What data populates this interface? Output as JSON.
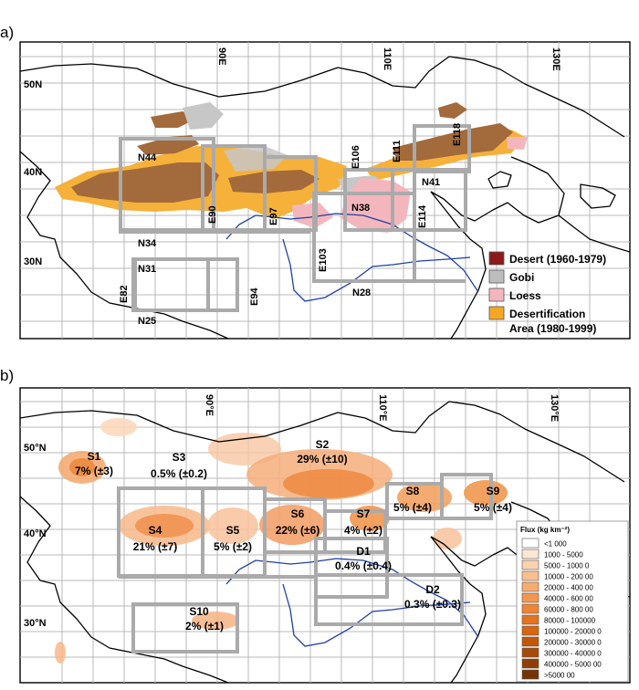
{
  "panel_a": {
    "label": "a)",
    "lat_labels": [
      "50N",
      "40N",
      "30N"
    ],
    "lon_labels": [
      "90E",
      "110E",
      "130E"
    ],
    "box_labels": {
      "N44": "N44",
      "N41": "N41",
      "N38": "N38",
      "N34": "N34",
      "N31": "N31",
      "N28": "N28",
      "N25": "N25",
      "E82": "E82",
      "E90": "E90",
      "E94": "E94",
      "E97": "E97",
      "E103": "E103",
      "E106": "E106",
      "E111": "E111",
      "E114": "E114",
      "E118": "E118"
    },
    "legend": [
      {
        "label": "Desert (1960-1979)",
        "color": "#8b1a1a"
      },
      {
        "label": "Gobi",
        "color": "#bdbdbd"
      },
      {
        "label": "Loess",
        "color": "#f4b6bd"
      },
      {
        "label": "Desertification",
        "label2": "Area (1980-1999)",
        "color": "#f5a623"
      }
    ]
  },
  "panel_b": {
    "label": "b)",
    "lat_labels": [
      "50°N",
      "40°N",
      "30°N"
    ],
    "lon_labels": [
      "90°E",
      "110°E",
      "130°E"
    ],
    "sources": [
      {
        "name": "S1",
        "pct": "7% (±3)"
      },
      {
        "name": "S2",
        "pct": "29% (±10)"
      },
      {
        "name": "S3",
        "pct": "0.5% (±0.2)"
      },
      {
        "name": "S4",
        "pct": "21% (±7)"
      },
      {
        "name": "S5",
        "pct": "5% (±2)"
      },
      {
        "name": "S6",
        "pct": "22% (±6)"
      },
      {
        "name": "S7",
        "pct": "4% (±2)"
      },
      {
        "name": "S8",
        "pct": "5% (±4)"
      },
      {
        "name": "S9",
        "pct": "5% (±4)"
      },
      {
        "name": "S10",
        "pct": "2% (±1)"
      },
      {
        "name": "D1",
        "pct": "0.4% (±0.4)"
      },
      {
        "name": "D2",
        "pct": "0.3% (±0.3)"
      }
    ],
    "flux_legend": {
      "title": "Flux (kg km⁻²)",
      "items": [
        {
          "label": "<1 000",
          "color": "#ffffff"
        },
        {
          "label": "1000 - 5000",
          "color": "#fde6d3"
        },
        {
          "label": "5000 - 1000 0",
          "color": "#fbd2b0"
        },
        {
          "label": "10000 - 200 00",
          "color": "#f9bf90"
        },
        {
          "label": "20000 - 400 00",
          "color": "#f7ab6e"
        },
        {
          "label": "40000 - 600 00",
          "color": "#f3974f"
        },
        {
          "label": "60000 - 800 00",
          "color": "#ee8434"
        },
        {
          "label": "80000 - 100000",
          "color": "#e5741f"
        },
        {
          "label": "100000 - 20000 0",
          "color": "#d8650f"
        },
        {
          "label": "200000 - 30000 0",
          "color": "#c25708"
        },
        {
          "label": "300000 - 40000 0",
          "color": "#a84a07"
        },
        {
          "label": "400000 - 5000 00",
          "color": "#8e3f06"
        },
        {
          "label": ">5000 00",
          "color": "#743405"
        }
      ]
    }
  }
}
